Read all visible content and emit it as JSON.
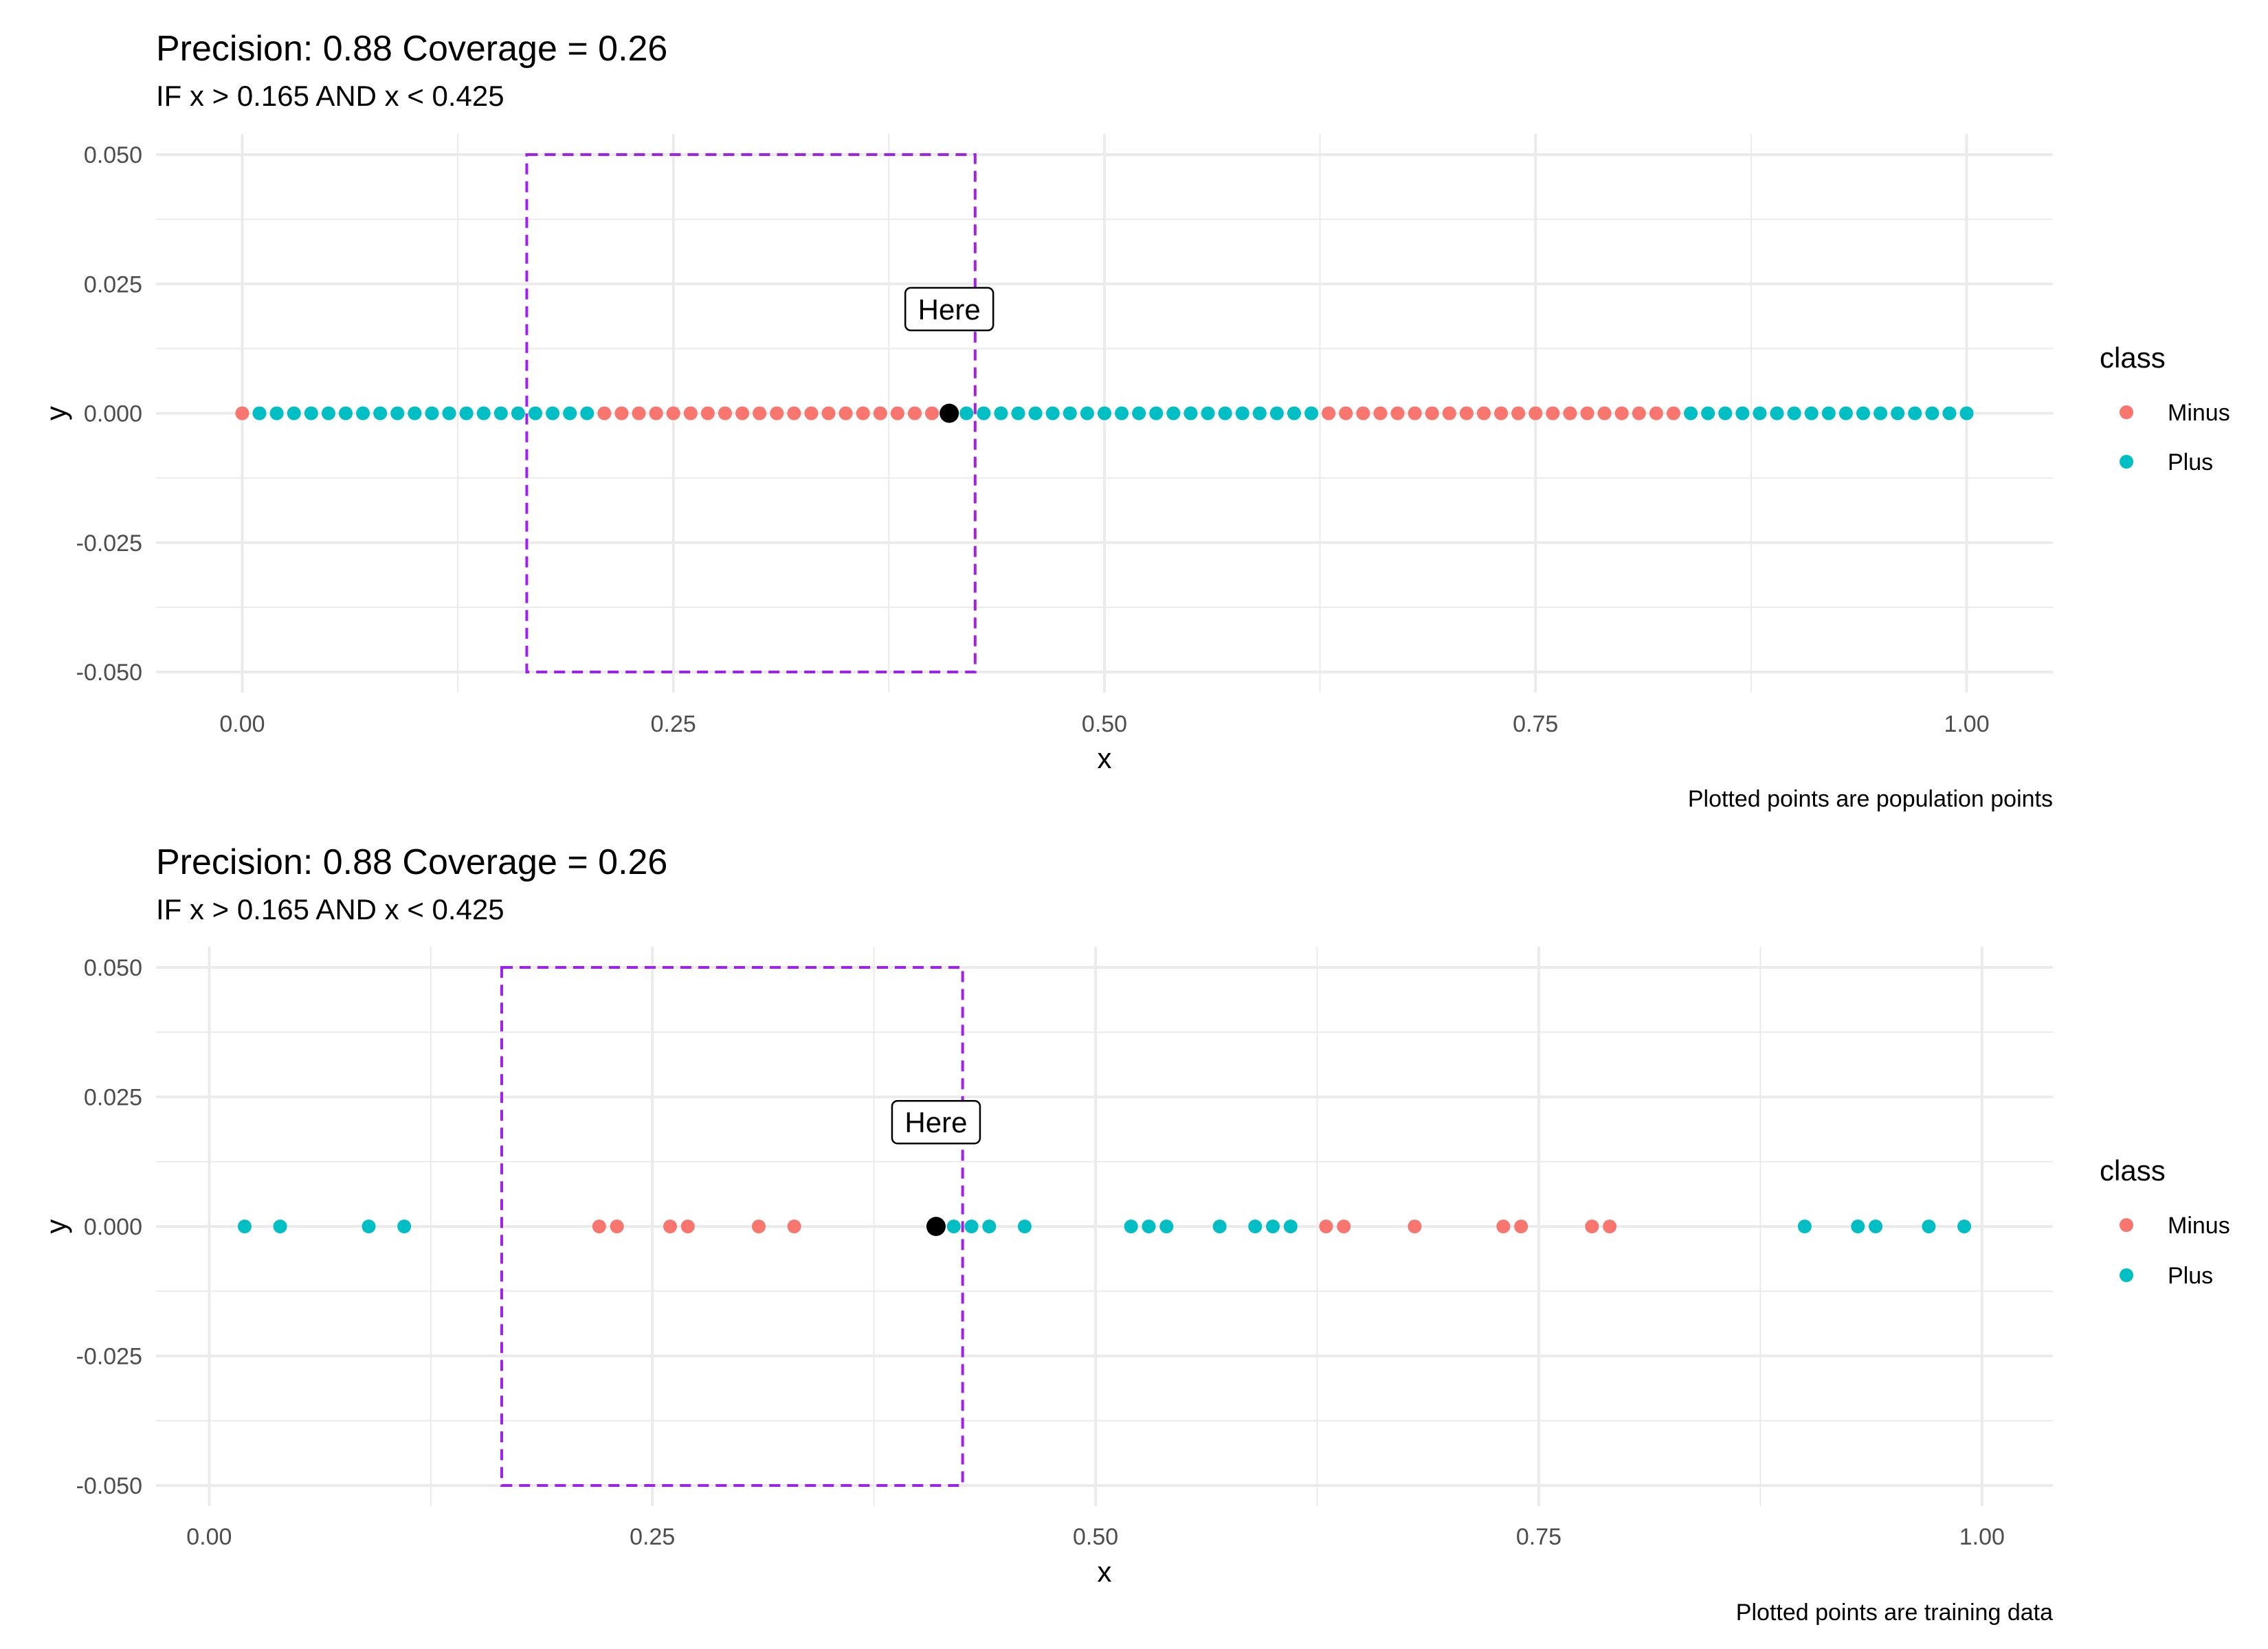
{
  "colors": {
    "Minus": "#F8766D",
    "Plus": "#00BFC4",
    "highlight": "#000000",
    "rule_box": "#A020F0",
    "grid": "#EBEBEB"
  },
  "legend": {
    "title": "class",
    "entries": [
      "Minus",
      "Plus"
    ],
    "placement": "right"
  },
  "chart_data": [
    {
      "type": "scatter",
      "title": "Precision: 0.88 Coverage = 0.26",
      "subtitle": "IF x > 0.165 AND x < 0.425",
      "caption": "Plotted points are population points",
      "xlabel": "x",
      "ylabel": "y",
      "xlim": [
        -0.05,
        1.05
      ],
      "ylim": [
        -0.05,
        0.05
      ],
      "x_ticks": [
        0.0,
        0.25,
        0.5,
        0.75,
        1.0
      ],
      "x_tick_labels": [
        "0.00",
        "0.25",
        "0.50",
        "0.75",
        "1.00"
      ],
      "y_ticks": [
        0.05,
        0.025,
        0.0,
        -0.025,
        -0.05
      ],
      "y_tick_labels": [
        "0.050",
        "0.025",
        "0.000",
        "-0.025",
        "-0.050"
      ],
      "grid": true,
      "rule_box": {
        "xmin": 0.165,
        "xmax": 0.425,
        "ymin": -0.05,
        "ymax": 0.05
      },
      "highlight": {
        "x": 0.41,
        "y": 0.0,
        "label": "Here",
        "label_y": 0.02
      },
      "series": [
        {
          "name": "Minus",
          "x": [
            0.0,
            0.21,
            0.22,
            0.23,
            0.24,
            0.25,
            0.26,
            0.27,
            0.28,
            0.29,
            0.3,
            0.31,
            0.32,
            0.33,
            0.34,
            0.35,
            0.36,
            0.37,
            0.38,
            0.39,
            0.4,
            0.63,
            0.64,
            0.65,
            0.66,
            0.67,
            0.68,
            0.69,
            0.7,
            0.71,
            0.72,
            0.73,
            0.74,
            0.75,
            0.76,
            0.77,
            0.78,
            0.79,
            0.8,
            0.81,
            0.82,
            0.83
          ],
          "y": [
            0,
            0,
            0,
            0,
            0,
            0,
            0,
            0,
            0,
            0,
            0,
            0,
            0,
            0,
            0,
            0,
            0,
            0,
            0,
            0,
            0,
            0,
            0,
            0,
            0,
            0,
            0,
            0,
            0,
            0,
            0,
            0,
            0,
            0,
            0,
            0,
            0,
            0,
            0,
            0,
            0,
            0
          ]
        },
        {
          "name": "Plus",
          "x": [
            0.01,
            0.02,
            0.03,
            0.04,
            0.05,
            0.06,
            0.07,
            0.08,
            0.09,
            0.1,
            0.11,
            0.12,
            0.13,
            0.14,
            0.15,
            0.16,
            0.17,
            0.18,
            0.19,
            0.2,
            0.42,
            0.43,
            0.44,
            0.45,
            0.46,
            0.47,
            0.48,
            0.49,
            0.5,
            0.51,
            0.52,
            0.53,
            0.54,
            0.55,
            0.56,
            0.57,
            0.58,
            0.59,
            0.6,
            0.61,
            0.62,
            0.84,
            0.85,
            0.86,
            0.87,
            0.88,
            0.89,
            0.9,
            0.91,
            0.92,
            0.93,
            0.94,
            0.95,
            0.96,
            0.97,
            0.98,
            0.99,
            1.0
          ],
          "y": [
            0,
            0,
            0,
            0,
            0,
            0,
            0,
            0,
            0,
            0,
            0,
            0,
            0,
            0,
            0,
            0,
            0,
            0,
            0,
            0,
            0,
            0,
            0,
            0,
            0,
            0,
            0,
            0,
            0,
            0,
            0,
            0,
            0,
            0,
            0,
            0,
            0,
            0,
            0,
            0,
            0,
            0,
            0,
            0,
            0,
            0,
            0,
            0,
            0,
            0,
            0,
            0,
            0,
            0,
            0,
            0,
            0,
            0
          ]
        }
      ]
    },
    {
      "type": "scatter",
      "title": "Precision: 0.88 Coverage = 0.26",
      "subtitle": "IF x > 0.165 AND x < 0.425",
      "caption": "Plotted points are training data",
      "xlabel": "x",
      "ylabel": "y",
      "xlim": [
        -0.03,
        1.04
      ],
      "ylim": [
        -0.05,
        0.05
      ],
      "x_ticks": [
        0.0,
        0.25,
        0.5,
        0.75,
        1.0
      ],
      "x_tick_labels": [
        "0.00",
        "0.25",
        "0.50",
        "0.75",
        "1.00"
      ],
      "y_ticks": [
        0.05,
        0.025,
        0.0,
        -0.025,
        -0.05
      ],
      "y_tick_labels": [
        "0.050",
        "0.025",
        "0.000",
        "-0.025",
        "-0.050"
      ],
      "grid": true,
      "rule_box": {
        "xmin": 0.165,
        "xmax": 0.425,
        "ymin": -0.05,
        "ymax": 0.05
      },
      "highlight": {
        "x": 0.41,
        "y": 0.0,
        "label": "Here",
        "label_y": 0.02
      },
      "series": [
        {
          "name": "Minus",
          "x": [
            0.22,
            0.23,
            0.26,
            0.27,
            0.31,
            0.33,
            0.63,
            0.64,
            0.68,
            0.73,
            0.74,
            0.78,
            0.79
          ],
          "y": [
            0,
            0,
            0,
            0,
            0,
            0,
            0,
            0,
            0,
            0,
            0,
            0,
            0
          ]
        },
        {
          "name": "Plus",
          "x": [
            0.02,
            0.04,
            0.09,
            0.11,
            0.42,
            0.43,
            0.44,
            0.46,
            0.52,
            0.53,
            0.54,
            0.57,
            0.59,
            0.6,
            0.61,
            0.9,
            0.93,
            0.94,
            0.97,
            0.99
          ],
          "y": [
            0,
            0,
            0,
            0,
            0,
            0,
            0,
            0,
            0,
            0,
            0,
            0,
            0,
            0,
            0,
            0,
            0,
            0,
            0,
            0
          ]
        }
      ]
    }
  ]
}
